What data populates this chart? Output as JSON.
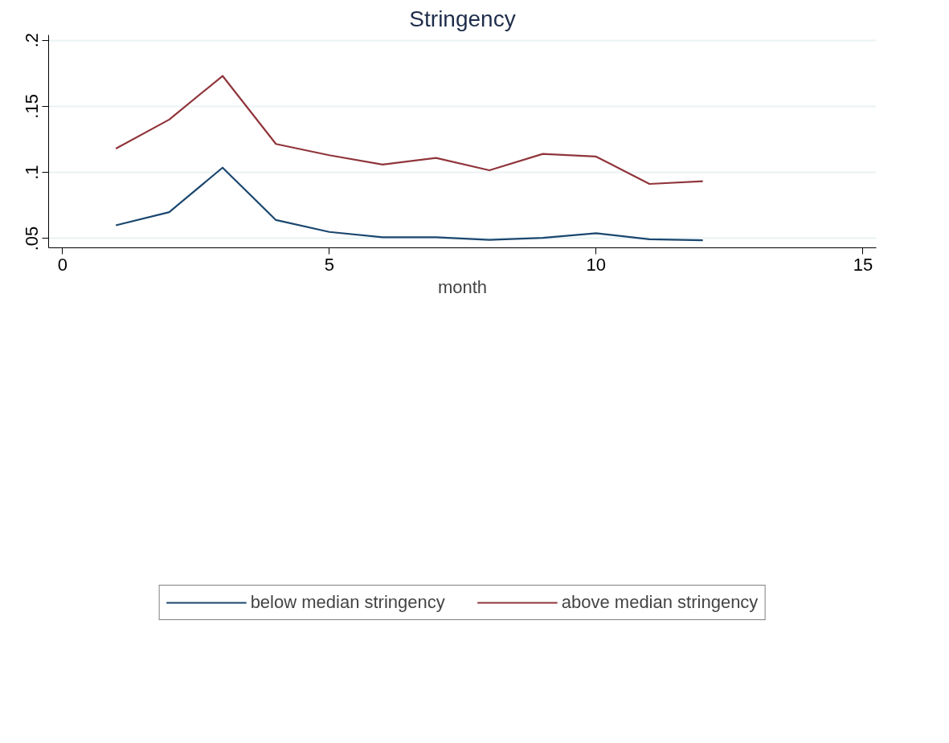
{
  "chart_data": {
    "type": "line",
    "title": "Stringency",
    "xlabel": "month",
    "x": [
      1,
      2,
      3,
      4,
      5,
      6,
      7,
      8,
      9,
      10,
      11,
      12
    ],
    "series": [
      {
        "name": "below median stringency",
        "color": "#1a476f",
        "values": [
          0.06,
          0.07,
          0.1036,
          0.064,
          0.055,
          0.051,
          0.051,
          0.049,
          0.0505,
          0.054,
          0.0495,
          0.0487
        ]
      },
      {
        "name": "above median stringency",
        "color": "#90353b",
        "values": [
          0.118,
          0.14,
          0.173,
          0.1215,
          0.113,
          0.106,
          0.111,
          0.1016,
          0.114,
          0.112,
          0.0913,
          0.0934
        ]
      }
    ],
    "xlim": [
      -0.26,
      15.25
    ],
    "ylim": [
      0.043,
      0.204
    ],
    "xticks": [
      0,
      5,
      10,
      15
    ],
    "yticks": [
      {
        "value": 0.05,
        "label": ".05"
      },
      {
        "value": 0.1,
        "label": ".1"
      },
      {
        "value": 0.15,
        "label": ".15"
      },
      {
        "value": 0.2,
        "label": ".2"
      }
    ],
    "grid": "y",
    "legend": "bottom",
    "marker": "none",
    "line_style": "solid"
  }
}
